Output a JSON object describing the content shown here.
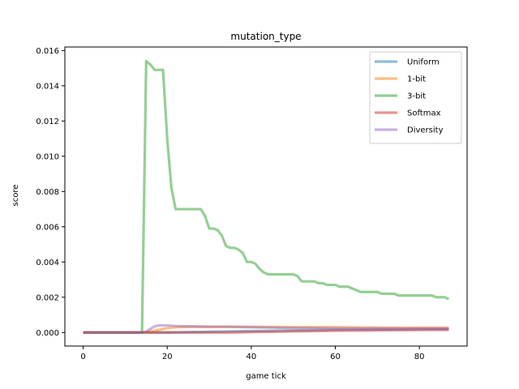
{
  "chart_data": {
    "type": "line",
    "title": "mutation_type",
    "xlabel": "game tick",
    "ylabel": "score",
    "xlim": [
      -4.35,
      91.35
    ],
    "ylim": [
      -0.00077,
      0.0162
    ],
    "xticks": [
      0,
      20,
      40,
      60,
      80
    ],
    "yticks": [
      0.0,
      0.002,
      0.004,
      0.006,
      0.008,
      0.01,
      0.012,
      0.014,
      0.016
    ],
    "ytick_labels": [
      "0.000",
      "0.002",
      "0.004",
      "0.006",
      "0.008",
      "0.010",
      "0.012",
      "0.014",
      "0.016"
    ],
    "grid": false,
    "legend": "top-right",
    "series": [
      {
        "name": "Uniform",
        "color": "#1f77b4",
        "points": [
          [
            0,
            0
          ],
          [
            14,
            0
          ],
          [
            15,
            0
          ],
          [
            20,
            0
          ],
          [
            25,
            2e-05
          ],
          [
            30,
            4e-05
          ],
          [
            35,
            6e-05
          ],
          [
            40,
            8e-05
          ],
          [
            45,
            0.0001
          ],
          [
            50,
            0.00012
          ],
          [
            55,
            0.00014
          ],
          [
            60,
            0.00016
          ],
          [
            65,
            0.00017
          ],
          [
            70,
            0.00018
          ],
          [
            75,
            0.00019
          ],
          [
            80,
            0.0002
          ],
          [
            87,
            0.0002
          ]
        ]
      },
      {
        "name": "1-bit",
        "color": "#ff7f0e",
        "points": [
          [
            0,
            0
          ],
          [
            14,
            0
          ],
          [
            16,
            5e-05
          ],
          [
            18,
            0.00015
          ],
          [
            20,
            0.00025
          ],
          [
            22,
            0.0003
          ],
          [
            25,
            0.00032
          ],
          [
            30,
            0.00032
          ],
          [
            35,
            0.00033
          ],
          [
            40,
            0.00032
          ],
          [
            45,
            0.00031
          ],
          [
            50,
            0.0003
          ],
          [
            55,
            0.0003
          ],
          [
            60,
            0.0003
          ],
          [
            65,
            0.00029
          ],
          [
            70,
            0.00028
          ],
          [
            75,
            0.00028
          ],
          [
            80,
            0.00027
          ],
          [
            87,
            0.00027
          ]
        ]
      },
      {
        "name": "3-bit",
        "color": "#2ca02c",
        "points": [
          [
            0,
            0
          ],
          [
            14,
            0
          ],
          [
            15,
            0.0154
          ],
          [
            16,
            0.0152
          ],
          [
            17,
            0.0149
          ],
          [
            18,
            0.0149
          ],
          [
            19,
            0.0149
          ],
          [
            20,
            0.011
          ],
          [
            21,
            0.0082
          ],
          [
            22,
            0.007
          ],
          [
            23,
            0.007
          ],
          [
            27,
            0.007
          ],
          [
            28,
            0.007
          ],
          [
            29,
            0.0066
          ],
          [
            30,
            0.0059
          ],
          [
            31,
            0.0059
          ],
          [
            32,
            0.0058
          ],
          [
            33,
            0.0055
          ],
          [
            34,
            0.0049
          ],
          [
            35,
            0.0048
          ],
          [
            36,
            0.0048
          ],
          [
            37,
            0.0047
          ],
          [
            38,
            0.0045
          ],
          [
            39,
            0.004
          ],
          [
            40,
            0.004
          ],
          [
            41,
            0.0039
          ],
          [
            42,
            0.0036
          ],
          [
            43,
            0.0034
          ],
          [
            44,
            0.0033
          ],
          [
            48,
            0.0033
          ],
          [
            50,
            0.0033
          ],
          [
            51,
            0.0032
          ],
          [
            52,
            0.0029
          ],
          [
            55,
            0.0029
          ],
          [
            56,
            0.0028
          ],
          [
            57,
            0.0028
          ],
          [
            58,
            0.0027
          ],
          [
            60,
            0.0027
          ],
          [
            61,
            0.0026
          ],
          [
            63,
            0.0026
          ],
          [
            64,
            0.0025
          ],
          [
            65,
            0.0024
          ],
          [
            66,
            0.0023
          ],
          [
            70,
            0.0023
          ],
          [
            71,
            0.0022
          ],
          [
            74,
            0.0022
          ],
          [
            75,
            0.0021
          ],
          [
            80,
            0.0021
          ],
          [
            83,
            0.0021
          ],
          [
            84,
            0.002
          ],
          [
            86,
            0.002
          ],
          [
            87,
            0.0019
          ]
        ]
      },
      {
        "name": "Softmax",
        "color": "#d62728",
        "points": [
          [
            0,
            0
          ],
          [
            14,
            0
          ],
          [
            20,
            0
          ],
          [
            25,
            0
          ],
          [
            30,
            0
          ],
          [
            35,
            0
          ],
          [
            40,
            2e-05
          ],
          [
            45,
            4e-05
          ],
          [
            50,
            6e-05
          ],
          [
            55,
            8e-05
          ],
          [
            60,
            0.0001
          ],
          [
            65,
            0.00011
          ],
          [
            70,
            0.00012
          ],
          [
            75,
            0.00013
          ],
          [
            80,
            0.00014
          ],
          [
            87,
            0.00015
          ]
        ]
      },
      {
        "name": "Diversity",
        "color": "#9467bd",
        "points": [
          [
            0,
            0
          ],
          [
            14,
            0
          ],
          [
            15,
            5e-05
          ],
          [
            16,
            0.0002
          ],
          [
            17,
            0.00035
          ],
          [
            18,
            0.0004
          ],
          [
            20,
            0.0004
          ],
          [
            22,
            0.00037
          ],
          [
            25,
            0.00035
          ],
          [
            30,
            0.00033
          ],
          [
            35,
            0.00032
          ],
          [
            40,
            0.0003
          ],
          [
            45,
            0.00028
          ],
          [
            50,
            0.00026
          ],
          [
            55,
            0.00025
          ],
          [
            60,
            0.00024
          ],
          [
            65,
            0.00023
          ],
          [
            70,
            0.00023
          ],
          [
            75,
            0.00022
          ],
          [
            80,
            0.00022
          ],
          [
            87,
            0.00022
          ]
        ]
      }
    ]
  }
}
